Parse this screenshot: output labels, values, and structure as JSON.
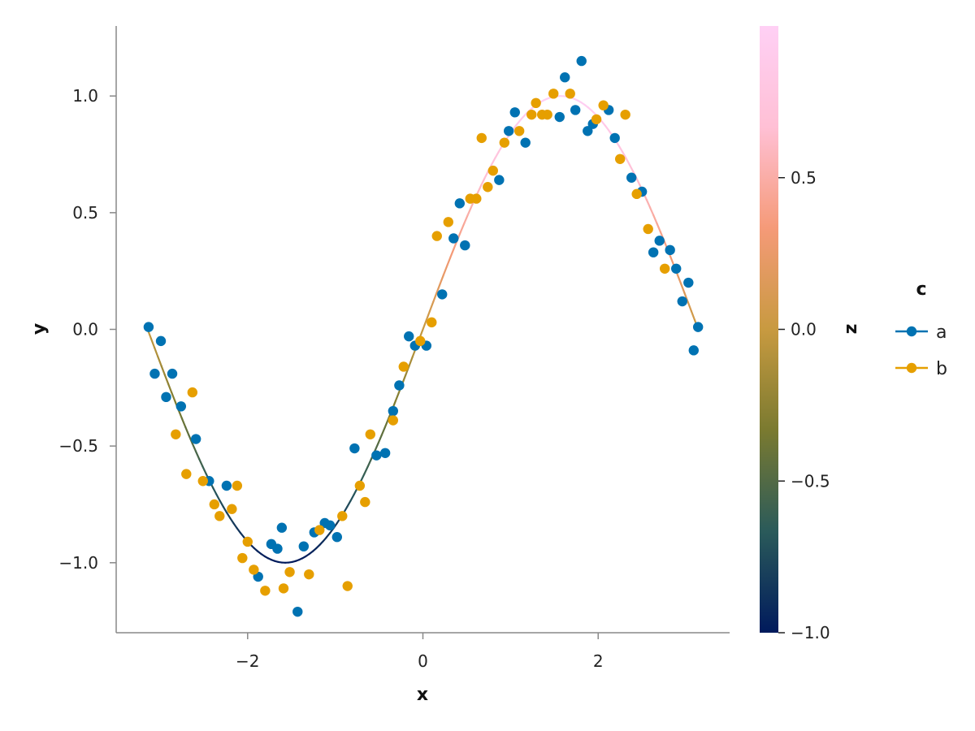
{
  "chart_data": {
    "type": "scatter",
    "xlabel": "x",
    "ylabel": "y",
    "xlim": [
      -3.5,
      3.5
    ],
    "ylim": [
      -1.3,
      1.3
    ],
    "x_ticks": [
      -2,
      0,
      2
    ],
    "x_tick_labels": [
      "−2",
      "0",
      "2"
    ],
    "y_ticks": [
      -1.0,
      -0.5,
      0.0,
      0.5,
      1.0
    ],
    "y_tick_labels": [
      "−1.0",
      "−0.5",
      "0.0",
      "0.5",
      "1.0"
    ],
    "grid": false,
    "legend": {
      "title": "c",
      "placement": "right",
      "entries": [
        {
          "name": "a",
          "color": "#0072b2"
        },
        {
          "name": "b",
          "color": "#e69f00"
        }
      ]
    },
    "line": {
      "function": "sin(x)",
      "x_range": [
        -3.14159,
        3.14159
      ],
      "color_by": "z",
      "colormap": [
        "#001a5c",
        "#2a5a5a",
        "#7a7a30",
        "#c89a40",
        "#f59a78",
        "#ffc0d5",
        "#ffd0f5"
      ]
    },
    "colorbar": {
      "label": "z",
      "range": [
        -1.0,
        1.0
      ],
      "ticks": [
        -1.0,
        -0.5,
        0.0,
        0.5
      ],
      "tick_labels": [
        "−1.0",
        "−0.5",
        "0.0",
        "0.5"
      ]
    },
    "series": [
      {
        "name": "a",
        "color": "#0072b2",
        "x": [
          -3.13,
          -3.06,
          -2.99,
          -2.93,
          -2.86,
          -2.76,
          -2.59,
          -2.44,
          -2.24,
          -1.88,
          -1.73,
          -1.66,
          -1.61,
          -1.43,
          -1.36,
          -1.24,
          -1.12,
          -1.06,
          -0.98,
          -0.78,
          -0.53,
          -0.43,
          -0.34,
          -0.27,
          -0.16,
          -0.09,
          0.04,
          0.22,
          0.35,
          0.42,
          0.48,
          0.87,
          0.98,
          1.05,
          1.17,
          1.56,
          1.62,
          1.74,
          1.81,
          1.88,
          1.94,
          2.12,
          2.19,
          2.38,
          2.5,
          2.63,
          2.7,
          2.82,
          2.89,
          2.96,
          3.03,
          3.09,
          3.14
        ],
        "y": [
          0.01,
          -0.19,
          -0.05,
          -0.29,
          -0.19,
          -0.33,
          -0.47,
          -0.65,
          -0.67,
          -1.06,
          -0.92,
          -0.94,
          -0.85,
          -1.21,
          -0.93,
          -0.87,
          -0.83,
          -0.84,
          -0.89,
          -0.51,
          -0.54,
          -0.53,
          -0.35,
          -0.24,
          -0.03,
          -0.07,
          -0.07,
          0.15,
          0.39,
          0.54,
          0.36,
          0.64,
          0.85,
          0.93,
          0.8,
          0.91,
          1.08,
          0.94,
          1.15,
          0.85,
          0.88,
          0.94,
          0.82,
          0.65,
          0.59,
          0.33,
          0.38,
          0.34,
          0.26,
          0.12,
          0.2,
          -0.09,
          0.01
        ]
      },
      {
        "name": "b",
        "color": "#e69f00",
        "x": [
          -2.82,
          -2.7,
          -2.63,
          -2.51,
          -2.38,
          -2.32,
          -2.18,
          -2.12,
          -2.06,
          -2.0,
          -1.93,
          -1.8,
          -1.59,
          -1.52,
          -1.3,
          -1.18,
          -0.92,
          -0.86,
          -0.72,
          -0.66,
          -0.6,
          -0.34,
          -0.22,
          -0.03,
          0.1,
          0.16,
          0.29,
          0.54,
          0.61,
          0.67,
          0.74,
          0.8,
          0.93,
          1.1,
          1.24,
          1.29,
          1.36,
          1.42,
          1.49,
          1.68,
          1.98,
          2.06,
          2.25,
          2.31,
          2.44,
          2.57,
          2.76
        ],
        "y": [
          -0.45,
          -0.62,
          -0.27,
          -0.65,
          -0.75,
          -0.8,
          -0.77,
          -0.67,
          -0.98,
          -0.91,
          -1.03,
          -1.12,
          -1.11,
          -1.04,
          -1.05,
          -0.86,
          -0.8,
          -1.1,
          -0.67,
          -0.74,
          -0.45,
          -0.39,
          -0.16,
          -0.05,
          0.03,
          0.4,
          0.46,
          0.56,
          0.56,
          0.82,
          0.61,
          0.68,
          0.8,
          0.85,
          0.92,
          0.97,
          0.92,
          0.92,
          1.01,
          1.01,
          0.9,
          0.96,
          0.73,
          0.92,
          0.58,
          0.43,
          0.26
        ]
      }
    ]
  }
}
